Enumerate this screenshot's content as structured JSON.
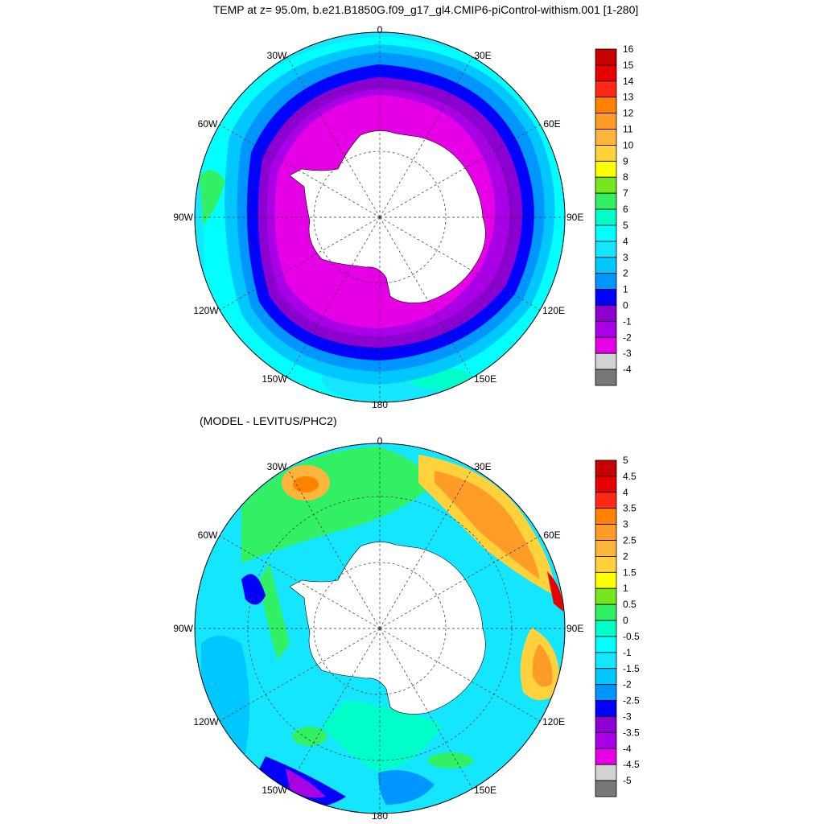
{
  "title": "TEMP at z=  95.0m, b.e21.B1850G.f09_g17_gl4.CMIP6-piControl-withism.001 [1-280]",
  "subtitle": "(MODEL - LEVITUS/PHC2)",
  "longitude_labels": {
    "top": "0",
    "upper_left": "30W",
    "upper_right": "30E",
    "left_upper": "60W",
    "right_upper": "60E",
    "left": "90W",
    "right": "90E",
    "left_lower": "120W",
    "right_lower": "120E",
    "lower_left": "150W",
    "lower_right": "150E",
    "bottom": "180"
  },
  "maps": [
    {
      "name": "temperature-map",
      "colorbar_labels": [
        "16",
        "15",
        "14",
        "13",
        "12",
        "11",
        "10",
        "9",
        "8",
        "7",
        "6",
        "5",
        "4",
        "3",
        "2",
        "1",
        "0",
        "-1",
        "-2",
        "-3",
        "-4"
      ],
      "colorbar_colors": [
        "#c80000",
        "#e60000",
        "#ff2814",
        "#ff8200",
        "#ff9c28",
        "#ffb43c",
        "#ffd23c",
        "#ffff00",
        "#78e61e",
        "#32f064",
        "#00ffc8",
        "#00ffff",
        "#14e6ff",
        "#00c8ff",
        "#0096ff",
        "#0000ff",
        "#8c00d2",
        "#aa00e6",
        "#e600e6",
        "#d2d2d2",
        "#787878"
      ]
    },
    {
      "name": "difference-map",
      "colorbar_labels": [
        "5",
        "4.5",
        "4",
        "3.5",
        "3",
        "2.5",
        "2",
        "1.5",
        "1",
        "0.5",
        "0",
        "-0.5",
        "-1",
        "-1.5",
        "-2",
        "-2.5",
        "-3",
        "-3.5",
        "-4",
        "-4.5",
        "-5"
      ],
      "colorbar_colors": [
        "#c80000",
        "#e60000",
        "#ff2814",
        "#ff8200",
        "#ff9c28",
        "#ffb43c",
        "#ffd23c",
        "#ffff00",
        "#78e61e",
        "#32f064",
        "#00ffc8",
        "#00ffff",
        "#14e6ff",
        "#00c8ff",
        "#0096ff",
        "#0000ff",
        "#8c00d2",
        "#aa00e6",
        "#e600e6",
        "#d2d2d2",
        "#787878"
      ]
    }
  ]
}
